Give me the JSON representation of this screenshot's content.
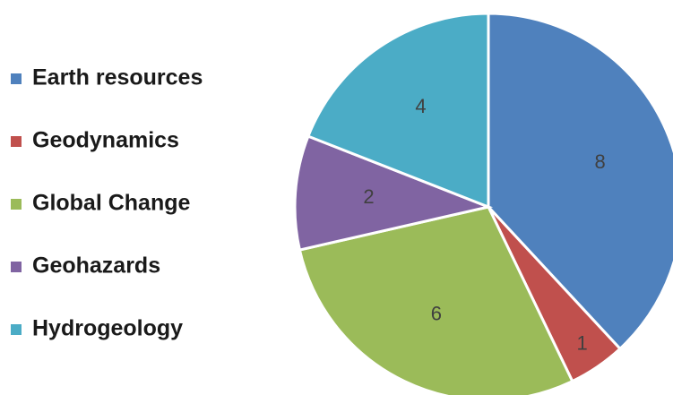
{
  "chart_data": {
    "type": "pie",
    "categories": [
      "Earth resources",
      "Geodynamics",
      "Global Change",
      "Geohazards",
      "Hydrogeology"
    ],
    "values": [
      8,
      1,
      6,
      2,
      4
    ],
    "colors": [
      "#4f81bd",
      "#c0504d",
      "#9bbb59",
      "#8064a2",
      "#4bacc6"
    ],
    "legend": "left"
  }
}
